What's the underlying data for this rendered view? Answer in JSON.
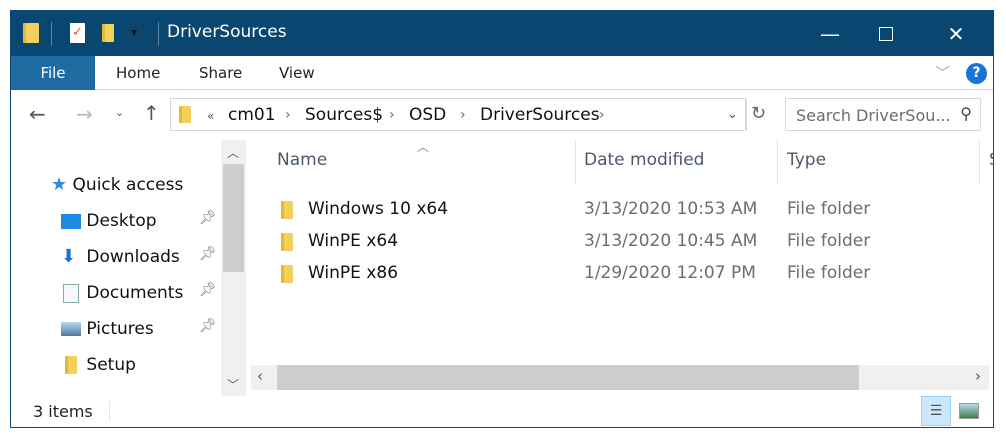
{
  "window": {
    "title": "DriverSources",
    "accent": "#0a4770"
  },
  "ribbon": {
    "tabs": [
      "File",
      "Home",
      "Share",
      "View"
    ]
  },
  "address": {
    "overflow": "«",
    "crumbs": [
      "cm01",
      "Sources$",
      "OSD",
      "DriverSources"
    ]
  },
  "search": {
    "placeholder": "Search DriverSou..."
  },
  "sidebar": {
    "items": [
      {
        "label": "Quick access",
        "icon": "star-icon",
        "pinned": false
      },
      {
        "label": "Desktop",
        "icon": "desktop-icon",
        "pinned": true
      },
      {
        "label": "Downloads",
        "icon": "download-icon",
        "pinned": true
      },
      {
        "label": "Documents",
        "icon": "documents-icon",
        "pinned": true
      },
      {
        "label": "Pictures",
        "icon": "pictures-icon",
        "pinned": true
      },
      {
        "label": "Setup",
        "icon": "folder-icon",
        "pinned": false
      }
    ]
  },
  "columns": {
    "name": "Name",
    "date": "Date modified",
    "type": "Type",
    "size": "S"
  },
  "files": [
    {
      "name": "Windows 10 x64",
      "date": "3/13/2020 10:53 AM",
      "type": "File folder"
    },
    {
      "name": "WinPE x64",
      "date": "3/13/2020 10:45 AM",
      "type": "File folder"
    },
    {
      "name": "WinPE x86",
      "date": "1/29/2020 12:07 PM",
      "type": "File folder"
    }
  ],
  "status": {
    "count": "3 items"
  }
}
